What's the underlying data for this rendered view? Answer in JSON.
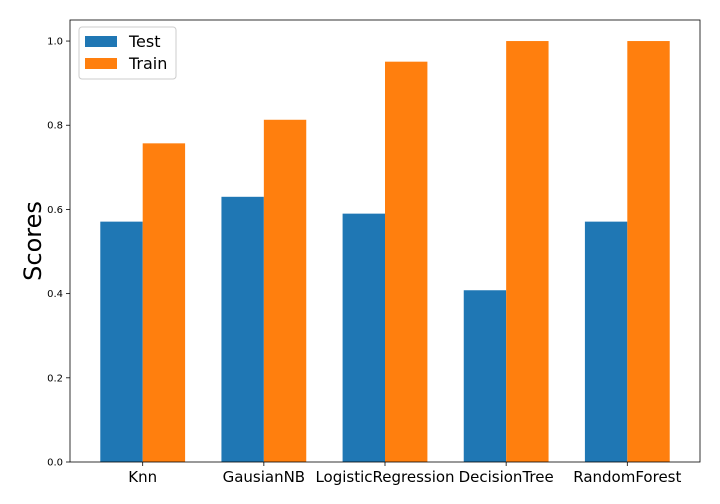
{
  "chart_data": {
    "type": "bar",
    "title": "",
    "xlabel": "",
    "ylabel": "Scores",
    "categories": [
      "Knn",
      "GausianNB",
      "LogisticRegression",
      "DecisionTree",
      "RandomForest"
    ],
    "series": [
      {
        "name": "Test",
        "color": "#1f77b4",
        "values": [
          0.571,
          0.63,
          0.59,
          0.408,
          0.571
        ]
      },
      {
        "name": "Train",
        "color": "#ff7f0e",
        "values": [
          0.757,
          0.813,
          0.951,
          1.0,
          1.0
        ]
      }
    ],
    "ylim": [
      0,
      1.0
    ],
    "yticks": [
      0.0,
      0.2,
      0.4,
      0.6,
      0.8,
      1.0
    ],
    "ytick_labels": [
      "0.0",
      "0.2",
      "0.4",
      "0.6",
      "0.8",
      "1.0"
    ],
    "legend_position": "upper-left",
    "grid": false
  }
}
